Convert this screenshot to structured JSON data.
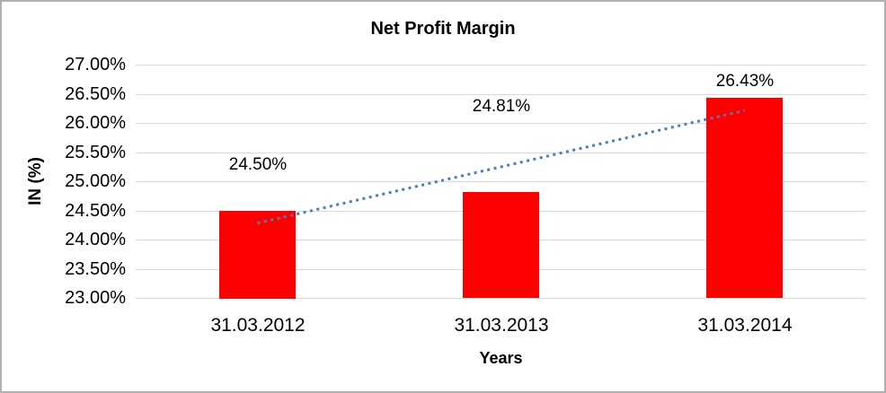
{
  "chart_data": {
    "type": "bar",
    "title": "Net Profit Margin",
    "categories": [
      "31.03.2012",
      "31.03.2013",
      "31.03.2014"
    ],
    "values": [
      24.5,
      24.81,
      26.43
    ],
    "data_labels": [
      "24.50%",
      "24.81%",
      "26.43%"
    ],
    "xlabel": "Years",
    "ylabel": "IN (%)",
    "yticks": [
      "27.00%",
      "26.50%",
      "26.00%",
      "25.50%",
      "25.00%",
      "24.50%",
      "24.00%",
      "23.50%",
      "23.00%"
    ],
    "ylim": [
      23,
      27
    ],
    "grid": true,
    "legend": false,
    "bar_color": "#ff0000",
    "gridline_color": "#d9d9d9",
    "trendline": {
      "type": "linear",
      "style": "dotted",
      "color": "#4a7ebb"
    }
  }
}
